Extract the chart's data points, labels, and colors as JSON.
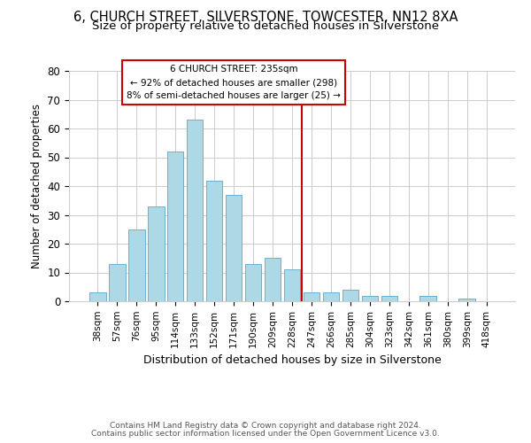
{
  "title": "6, CHURCH STREET, SILVERSTONE, TOWCESTER, NN12 8XA",
  "subtitle": "Size of property relative to detached houses in Silverstone",
  "xlabel": "Distribution of detached houses by size in Silverstone",
  "ylabel": "Number of detached properties",
  "bar_labels": [
    "38sqm",
    "57sqm",
    "76sqm",
    "95sqm",
    "114sqm",
    "133sqm",
    "152sqm",
    "171sqm",
    "190sqm",
    "209sqm",
    "228sqm",
    "247sqm",
    "266sqm",
    "285sqm",
    "304sqm",
    "323sqm",
    "342sqm",
    "361sqm",
    "380sqm",
    "399sqm",
    "418sqm"
  ],
  "bar_values": [
    3,
    13,
    25,
    33,
    52,
    63,
    42,
    37,
    13,
    15,
    11,
    3,
    3,
    4,
    2,
    2,
    0,
    2,
    0,
    1,
    0
  ],
  "bar_color": "#ADD8E6",
  "bar_edge_color": "#6AB0D4",
  "vline_x": 10.5,
  "vline_color": "#CC0000",
  "annotation_title": "6 CHURCH STREET: 235sqm",
  "annotation_line1": "← 92% of detached houses are smaller (298)",
  "annotation_line2": "8% of semi-detached houses are larger (25) →",
  "annotation_box_color": "#ffffff",
  "annotation_box_edge": "#CC0000",
  "ylim": [
    0,
    80
  ],
  "yticks": [
    0,
    10,
    20,
    30,
    40,
    50,
    60,
    70,
    80
  ],
  "footer1": "Contains HM Land Registry data © Crown copyright and database right 2024.",
  "footer2": "Contains public sector information licensed under the Open Government Licence v3.0.",
  "title_fontsize": 10.5,
  "subtitle_fontsize": 9.5,
  "background_color": "#ffffff",
  "grid_color": "#cccccc"
}
